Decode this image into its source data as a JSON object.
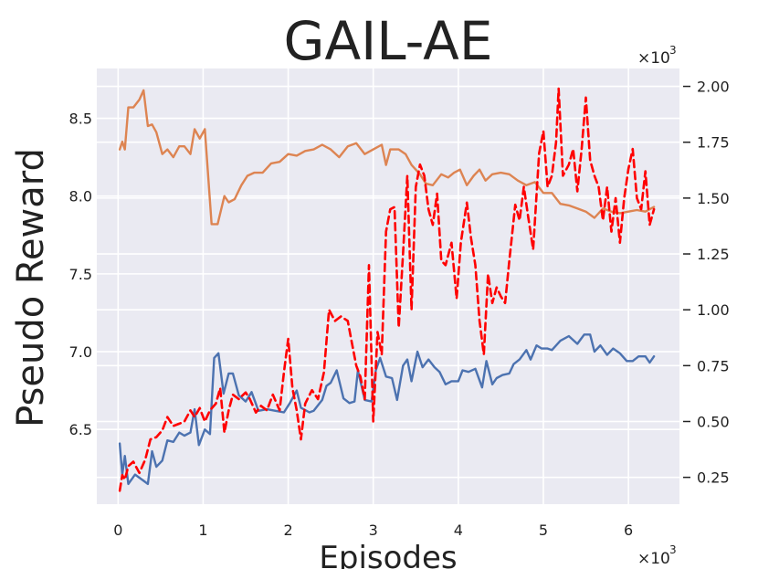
{
  "chart_data": {
    "type": "line",
    "title": "GAIL-AE",
    "xlabel": "Episodes",
    "ylabel": "Pseudo Reward",
    "x_multiplier": "×10",
    "x_multiplier_exp": "3",
    "y2_multiplier": "×10",
    "y2_multiplier_exp": "3",
    "xlim": [
      -0.25,
      6.6
    ],
    "ylim": [
      6.02,
      8.82
    ],
    "y2lim": [
      0.13,
      2.08
    ],
    "xticks": [
      "0",
      "1",
      "2",
      "3",
      "4",
      "5",
      "6"
    ],
    "yticks": [
      "6.5",
      "7.0",
      "7.5",
      "8.0",
      "8.5"
    ],
    "y2ticks": [
      "0.25",
      "0.50",
      "0.75",
      "1.00",
      "1.25",
      "1.50",
      "1.75",
      "2.00"
    ],
    "grid": true,
    "background": "#eaeaf2",
    "series": [
      {
        "axis": "left",
        "color": "#4c72b0",
        "style": "solid",
        "points": [
          [
            0.02,
            6.41
          ],
          [
            0.05,
            6.21
          ],
          [
            0.08,
            6.33
          ],
          [
            0.12,
            6.15
          ],
          [
            0.2,
            6.21
          ],
          [
            0.3,
            6.17
          ],
          [
            0.35,
            6.15
          ],
          [
            0.4,
            6.36
          ],
          [
            0.45,
            6.26
          ],
          [
            0.52,
            6.3
          ],
          [
            0.58,
            6.43
          ],
          [
            0.65,
            6.42
          ],
          [
            0.72,
            6.48
          ],
          [
            0.78,
            6.46
          ],
          [
            0.85,
            6.48
          ],
          [
            0.9,
            6.63
          ],
          [
            0.95,
            6.4
          ],
          [
            1.02,
            6.5
          ],
          [
            1.08,
            6.47
          ],
          [
            1.13,
            6.96
          ],
          [
            1.18,
            6.99
          ],
          [
            1.24,
            6.73
          ],
          [
            1.3,
            6.86
          ],
          [
            1.35,
            6.86
          ],
          [
            1.42,
            6.72
          ],
          [
            1.5,
            6.68
          ],
          [
            1.57,
            6.74
          ],
          [
            1.65,
            6.62
          ],
          [
            1.75,
            6.63
          ],
          [
            1.85,
            6.62
          ],
          [
            1.95,
            6.61
          ],
          [
            2.02,
            6.67
          ],
          [
            2.1,
            6.75
          ],
          [
            2.15,
            6.64
          ],
          [
            2.25,
            6.61
          ],
          [
            2.3,
            6.62
          ],
          [
            2.4,
            6.69
          ],
          [
            2.45,
            6.78
          ],
          [
            2.5,
            6.8
          ],
          [
            2.57,
            6.88
          ],
          [
            2.65,
            6.7
          ],
          [
            2.72,
            6.67
          ],
          [
            2.78,
            6.68
          ],
          [
            2.82,
            6.88
          ],
          [
            2.9,
            6.69
          ],
          [
            2.98,
            6.68
          ],
          [
            3.03,
            6.88
          ],
          [
            3.08,
            6.96
          ],
          [
            3.15,
            6.84
          ],
          [
            3.22,
            6.83
          ],
          [
            3.28,
            6.69
          ],
          [
            3.35,
            6.91
          ],
          [
            3.4,
            6.95
          ],
          [
            3.45,
            6.81
          ],
          [
            3.52,
            7.0
          ],
          [
            3.58,
            6.9
          ],
          [
            3.65,
            6.95
          ],
          [
            3.72,
            6.9
          ],
          [
            3.78,
            6.87
          ],
          [
            3.85,
            6.79
          ],
          [
            3.92,
            6.81
          ],
          [
            4.0,
            6.81
          ],
          [
            4.05,
            6.88
          ],
          [
            4.12,
            6.87
          ],
          [
            4.2,
            6.89
          ],
          [
            4.28,
            6.77
          ],
          [
            4.33,
            6.94
          ],
          [
            4.4,
            6.79
          ],
          [
            4.45,
            6.83
          ],
          [
            4.52,
            6.85
          ],
          [
            4.6,
            6.86
          ],
          [
            4.65,
            6.92
          ],
          [
            4.72,
            6.95
          ],
          [
            4.8,
            7.01
          ],
          [
            4.85,
            6.95
          ],
          [
            4.92,
            7.04
          ],
          [
            4.98,
            7.02
          ],
          [
            5.05,
            7.02
          ],
          [
            5.1,
            7.01
          ],
          [
            5.2,
            7.07
          ],
          [
            5.3,
            7.1
          ],
          [
            5.4,
            7.05
          ],
          [
            5.48,
            7.11
          ],
          [
            5.55,
            7.11
          ],
          [
            5.6,
            7.0
          ],
          [
            5.67,
            7.04
          ],
          [
            5.75,
            6.98
          ],
          [
            5.82,
            7.02
          ],
          [
            5.9,
            6.99
          ],
          [
            5.98,
            6.94
          ],
          [
            6.05,
            6.94
          ],
          [
            6.12,
            6.97
          ],
          [
            6.2,
            6.97
          ],
          [
            6.25,
            6.93
          ],
          [
            6.3,
            6.97
          ]
        ]
      },
      {
        "axis": "left",
        "color": "#dd8452",
        "style": "solid",
        "points": [
          [
            0.02,
            8.3
          ],
          [
            0.05,
            8.35
          ],
          [
            0.08,
            8.3
          ],
          [
            0.12,
            8.57
          ],
          [
            0.18,
            8.57
          ],
          [
            0.25,
            8.62
          ],
          [
            0.3,
            8.68
          ],
          [
            0.35,
            8.45
          ],
          [
            0.4,
            8.46
          ],
          [
            0.45,
            8.41
          ],
          [
            0.52,
            8.27
          ],
          [
            0.58,
            8.3
          ],
          [
            0.65,
            8.25
          ],
          [
            0.72,
            8.32
          ],
          [
            0.78,
            8.32
          ],
          [
            0.85,
            8.27
          ],
          [
            0.9,
            8.43
          ],
          [
            0.96,
            8.37
          ],
          [
            1.02,
            8.43
          ],
          [
            1.1,
            7.82
          ],
          [
            1.17,
            7.82
          ],
          [
            1.25,
            8.0
          ],
          [
            1.3,
            7.96
          ],
          [
            1.37,
            7.98
          ],
          [
            1.45,
            8.07
          ],
          [
            1.52,
            8.13
          ],
          [
            1.6,
            8.15
          ],
          [
            1.7,
            8.15
          ],
          [
            1.8,
            8.21
          ],
          [
            1.9,
            8.22
          ],
          [
            2.0,
            8.27
          ],
          [
            2.1,
            8.26
          ],
          [
            2.2,
            8.29
          ],
          [
            2.3,
            8.3
          ],
          [
            2.4,
            8.33
          ],
          [
            2.5,
            8.3
          ],
          [
            2.6,
            8.25
          ],
          [
            2.7,
            8.32
          ],
          [
            2.8,
            8.34
          ],
          [
            2.9,
            8.27
          ],
          [
            3.0,
            8.3
          ],
          [
            3.1,
            8.33
          ],
          [
            3.15,
            8.2
          ],
          [
            3.2,
            8.3
          ],
          [
            3.3,
            8.3
          ],
          [
            3.38,
            8.27
          ],
          [
            3.45,
            8.2
          ],
          [
            3.55,
            8.14
          ],
          [
            3.62,
            8.08
          ],
          [
            3.7,
            8.07
          ],
          [
            3.8,
            8.14
          ],
          [
            3.88,
            8.12
          ],
          [
            3.95,
            8.15
          ],
          [
            4.02,
            8.17
          ],
          [
            4.1,
            8.07
          ],
          [
            4.18,
            8.13
          ],
          [
            4.25,
            8.17
          ],
          [
            4.32,
            8.1
          ],
          [
            4.4,
            8.14
          ],
          [
            4.5,
            8.15
          ],
          [
            4.6,
            8.14
          ],
          [
            4.7,
            8.1
          ],
          [
            4.8,
            8.07
          ],
          [
            4.9,
            8.09
          ],
          [
            5.0,
            8.02
          ],
          [
            5.1,
            8.02
          ],
          [
            5.2,
            7.95
          ],
          [
            5.3,
            7.94
          ],
          [
            5.4,
            7.92
          ],
          [
            5.5,
            7.9
          ],
          [
            5.6,
            7.86
          ],
          [
            5.7,
            7.92
          ],
          [
            5.8,
            7.9
          ],
          [
            5.9,
            7.89
          ],
          [
            6.0,
            7.9
          ],
          [
            6.1,
            7.91
          ],
          [
            6.2,
            7.9
          ],
          [
            6.3,
            7.93
          ]
        ]
      },
      {
        "axis": "right",
        "color": "#ff0000",
        "style": "dashed",
        "points": [
          [
            0.02,
            0.19
          ],
          [
            0.05,
            0.26
          ],
          [
            0.08,
            0.24
          ],
          [
            0.12,
            0.3
          ],
          [
            0.18,
            0.32
          ],
          [
            0.25,
            0.27
          ],
          [
            0.32,
            0.33
          ],
          [
            0.38,
            0.42
          ],
          [
            0.45,
            0.43
          ],
          [
            0.52,
            0.46
          ],
          [
            0.58,
            0.52
          ],
          [
            0.65,
            0.48
          ],
          [
            0.72,
            0.49
          ],
          [
            0.78,
            0.5
          ],
          [
            0.85,
            0.55
          ],
          [
            0.9,
            0.52
          ],
          [
            0.96,
            0.56
          ],
          [
            1.02,
            0.5
          ],
          [
            1.08,
            0.55
          ],
          [
            1.15,
            0.58
          ],
          [
            1.2,
            0.65
          ],
          [
            1.25,
            0.45
          ],
          [
            1.3,
            0.55
          ],
          [
            1.35,
            0.62
          ],
          [
            1.42,
            0.6
          ],
          [
            1.5,
            0.63
          ],
          [
            1.55,
            0.6
          ],
          [
            1.62,
            0.54
          ],
          [
            1.68,
            0.57
          ],
          [
            1.75,
            0.55
          ],
          [
            1.82,
            0.62
          ],
          [
            1.9,
            0.55
          ],
          [
            1.95,
            0.72
          ],
          [
            2.0,
            0.87
          ],
          [
            2.05,
            0.65
          ],
          [
            2.1,
            0.55
          ],
          [
            2.15,
            0.42
          ],
          [
            2.2,
            0.58
          ],
          [
            2.28,
            0.64
          ],
          [
            2.35,
            0.6
          ],
          [
            2.42,
            0.72
          ],
          [
            2.48,
            1.0
          ],
          [
            2.55,
            0.95
          ],
          [
            2.62,
            0.97
          ],
          [
            2.7,
            0.95
          ],
          [
            2.75,
            0.85
          ],
          [
            2.8,
            0.75
          ],
          [
            2.85,
            0.7
          ],
          [
            2.9,
            0.6
          ],
          [
            2.95,
            1.2
          ],
          [
            3.0,
            0.5
          ],
          [
            3.05,
            0.9
          ],
          [
            3.1,
            0.8
          ],
          [
            3.15,
            1.35
          ],
          [
            3.2,
            1.45
          ],
          [
            3.25,
            1.46
          ],
          [
            3.3,
            0.92
          ],
          [
            3.35,
            1.25
          ],
          [
            3.4,
            1.6
          ],
          [
            3.45,
            1.0
          ],
          [
            3.5,
            1.55
          ],
          [
            3.55,
            1.65
          ],
          [
            3.6,
            1.6
          ],
          [
            3.65,
            1.45
          ],
          [
            3.7,
            1.38
          ],
          [
            3.75,
            1.52
          ],
          [
            3.8,
            1.22
          ],
          [
            3.85,
            1.2
          ],
          [
            3.92,
            1.3
          ],
          [
            3.98,
            1.05
          ],
          [
            4.03,
            1.3
          ],
          [
            4.1,
            1.48
          ],
          [
            4.15,
            1.32
          ],
          [
            4.2,
            1.2
          ],
          [
            4.25,
            0.95
          ],
          [
            4.3,
            0.8
          ],
          [
            4.35,
            1.16
          ],
          [
            4.4,
            1.03
          ],
          [
            4.45,
            1.1
          ],
          [
            4.5,
            1.06
          ],
          [
            4.55,
            1.03
          ],
          [
            4.6,
            1.22
          ],
          [
            4.67,
            1.47
          ],
          [
            4.72,
            1.4
          ],
          [
            4.77,
            1.55
          ],
          [
            4.82,
            1.42
          ],
          [
            4.88,
            1.27
          ],
          [
            4.95,
            1.7
          ],
          [
            5.0,
            1.8
          ],
          [
            5.05,
            1.55
          ],
          [
            5.1,
            1.6
          ],
          [
            5.15,
            1.75
          ],
          [
            5.18,
            1.99
          ],
          [
            5.23,
            1.6
          ],
          [
            5.3,
            1.65
          ],
          [
            5.35,
            1.72
          ],
          [
            5.4,
            1.53
          ],
          [
            5.45,
            1.72
          ],
          [
            5.5,
            1.95
          ],
          [
            5.55,
            1.67
          ],
          [
            5.6,
            1.6
          ],
          [
            5.65,
            1.55
          ],
          [
            5.7,
            1.4
          ],
          [
            5.75,
            1.55
          ],
          [
            5.8,
            1.35
          ],
          [
            5.85,
            1.5
          ],
          [
            5.9,
            1.3
          ],
          [
            5.95,
            1.5
          ],
          [
            6.0,
            1.63
          ],
          [
            6.05,
            1.72
          ],
          [
            6.1,
            1.5
          ],
          [
            6.15,
            1.45
          ],
          [
            6.2,
            1.62
          ],
          [
            6.25,
            1.38
          ],
          [
            6.3,
            1.45
          ]
        ]
      }
    ]
  }
}
